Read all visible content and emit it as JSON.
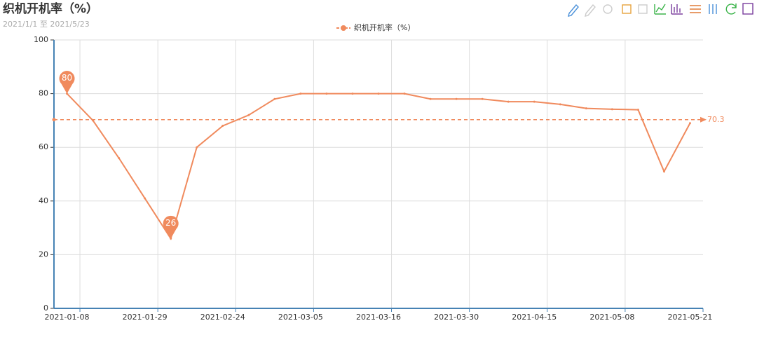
{
  "chart_data": {
    "type": "line",
    "title": "织机开机率（%）",
    "subtitle": "2021/1/1 至 2021/5/23",
    "categories": [
      "2021-01-08",
      null,
      null,
      "2021-01-29",
      null,
      null,
      "2021-02-24",
      null,
      null,
      "2021-03-05",
      null,
      null,
      "2021-03-16",
      null,
      null,
      "2021-03-30",
      null,
      null,
      "2021-04-15",
      null,
      null,
      "2021-05-08",
      null,
      null,
      "2021-05-21"
    ],
    "series": [
      {
        "name": "织机开机率（%）",
        "color": "#f08a5d",
        "values": [
          80,
          70,
          56,
          41,
          26,
          60,
          68,
          72,
          78,
          80,
          80,
          80,
          80,
          80,
          78,
          78,
          78,
          77,
          77,
          76,
          74.5,
          74.2,
          74,
          51,
          69
        ],
        "max_point": 80,
        "min_point": 26,
        "average": 70.3
      }
    ],
    "ylim": [
      0,
      100
    ],
    "yticks": [
      0,
      20,
      40,
      60,
      80,
      100
    ],
    "grid": true
  }
}
